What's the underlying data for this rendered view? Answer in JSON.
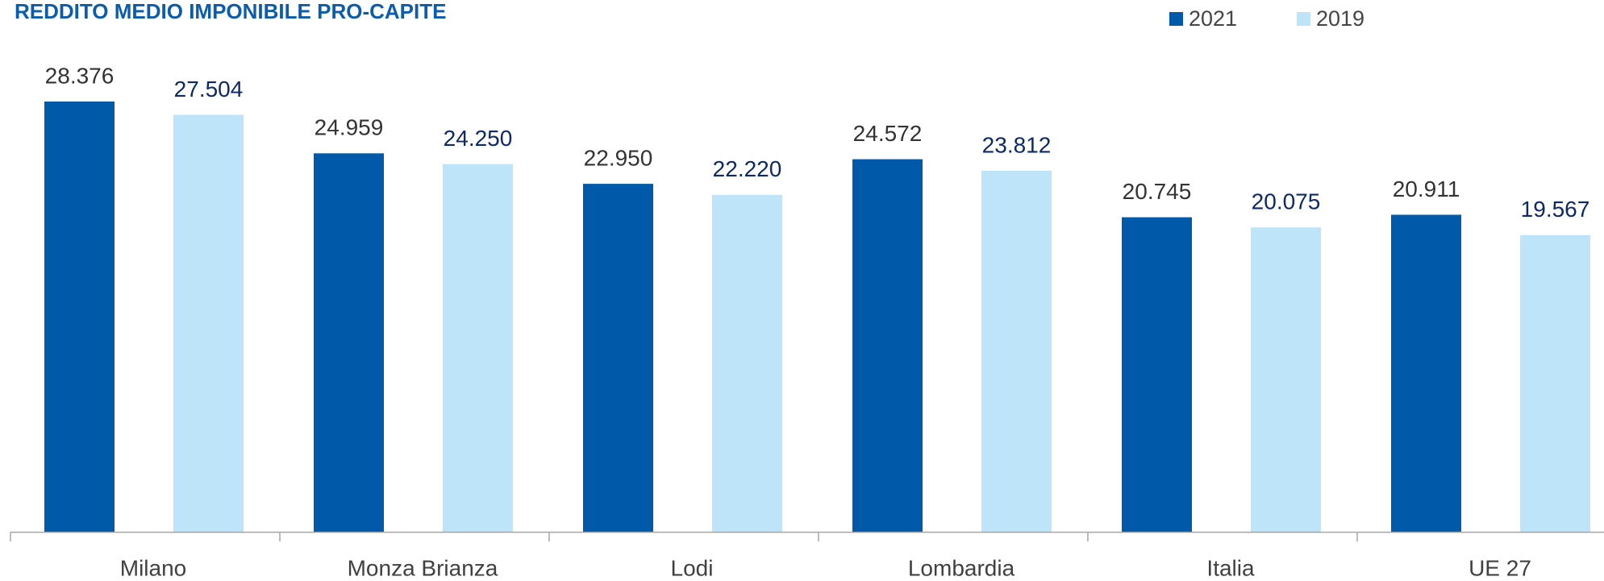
{
  "chart_data": {
    "type": "bar",
    "title": "REDDITO MEDIO IMPONIBILE PRO-CAPITE",
    "categories": [
      "Milano",
      "Monza Brianza",
      "Lodi",
      "Lombardia",
      "Italia",
      "UE 27"
    ],
    "series": [
      {
        "name": "2021",
        "color": "#005aa9",
        "label_color": "#333333",
        "values": [
          28376,
          24959,
          22950,
          24572,
          20745,
          20911
        ],
        "value_labels": [
          "28.376",
          "24.959",
          "22.950",
          "24.572",
          "20.745",
          "20.911"
        ]
      },
      {
        "name": "2019",
        "color": "#bde4f8",
        "label_color": "#0d2a66",
        "values": [
          27504,
          24250,
          22220,
          23812,
          20075,
          19567
        ],
        "value_labels": [
          "27.504",
          "24.250",
          "22.220",
          "23.812",
          "20.075",
          "19.567"
        ]
      }
    ],
    "legend": "top-right"
  }
}
